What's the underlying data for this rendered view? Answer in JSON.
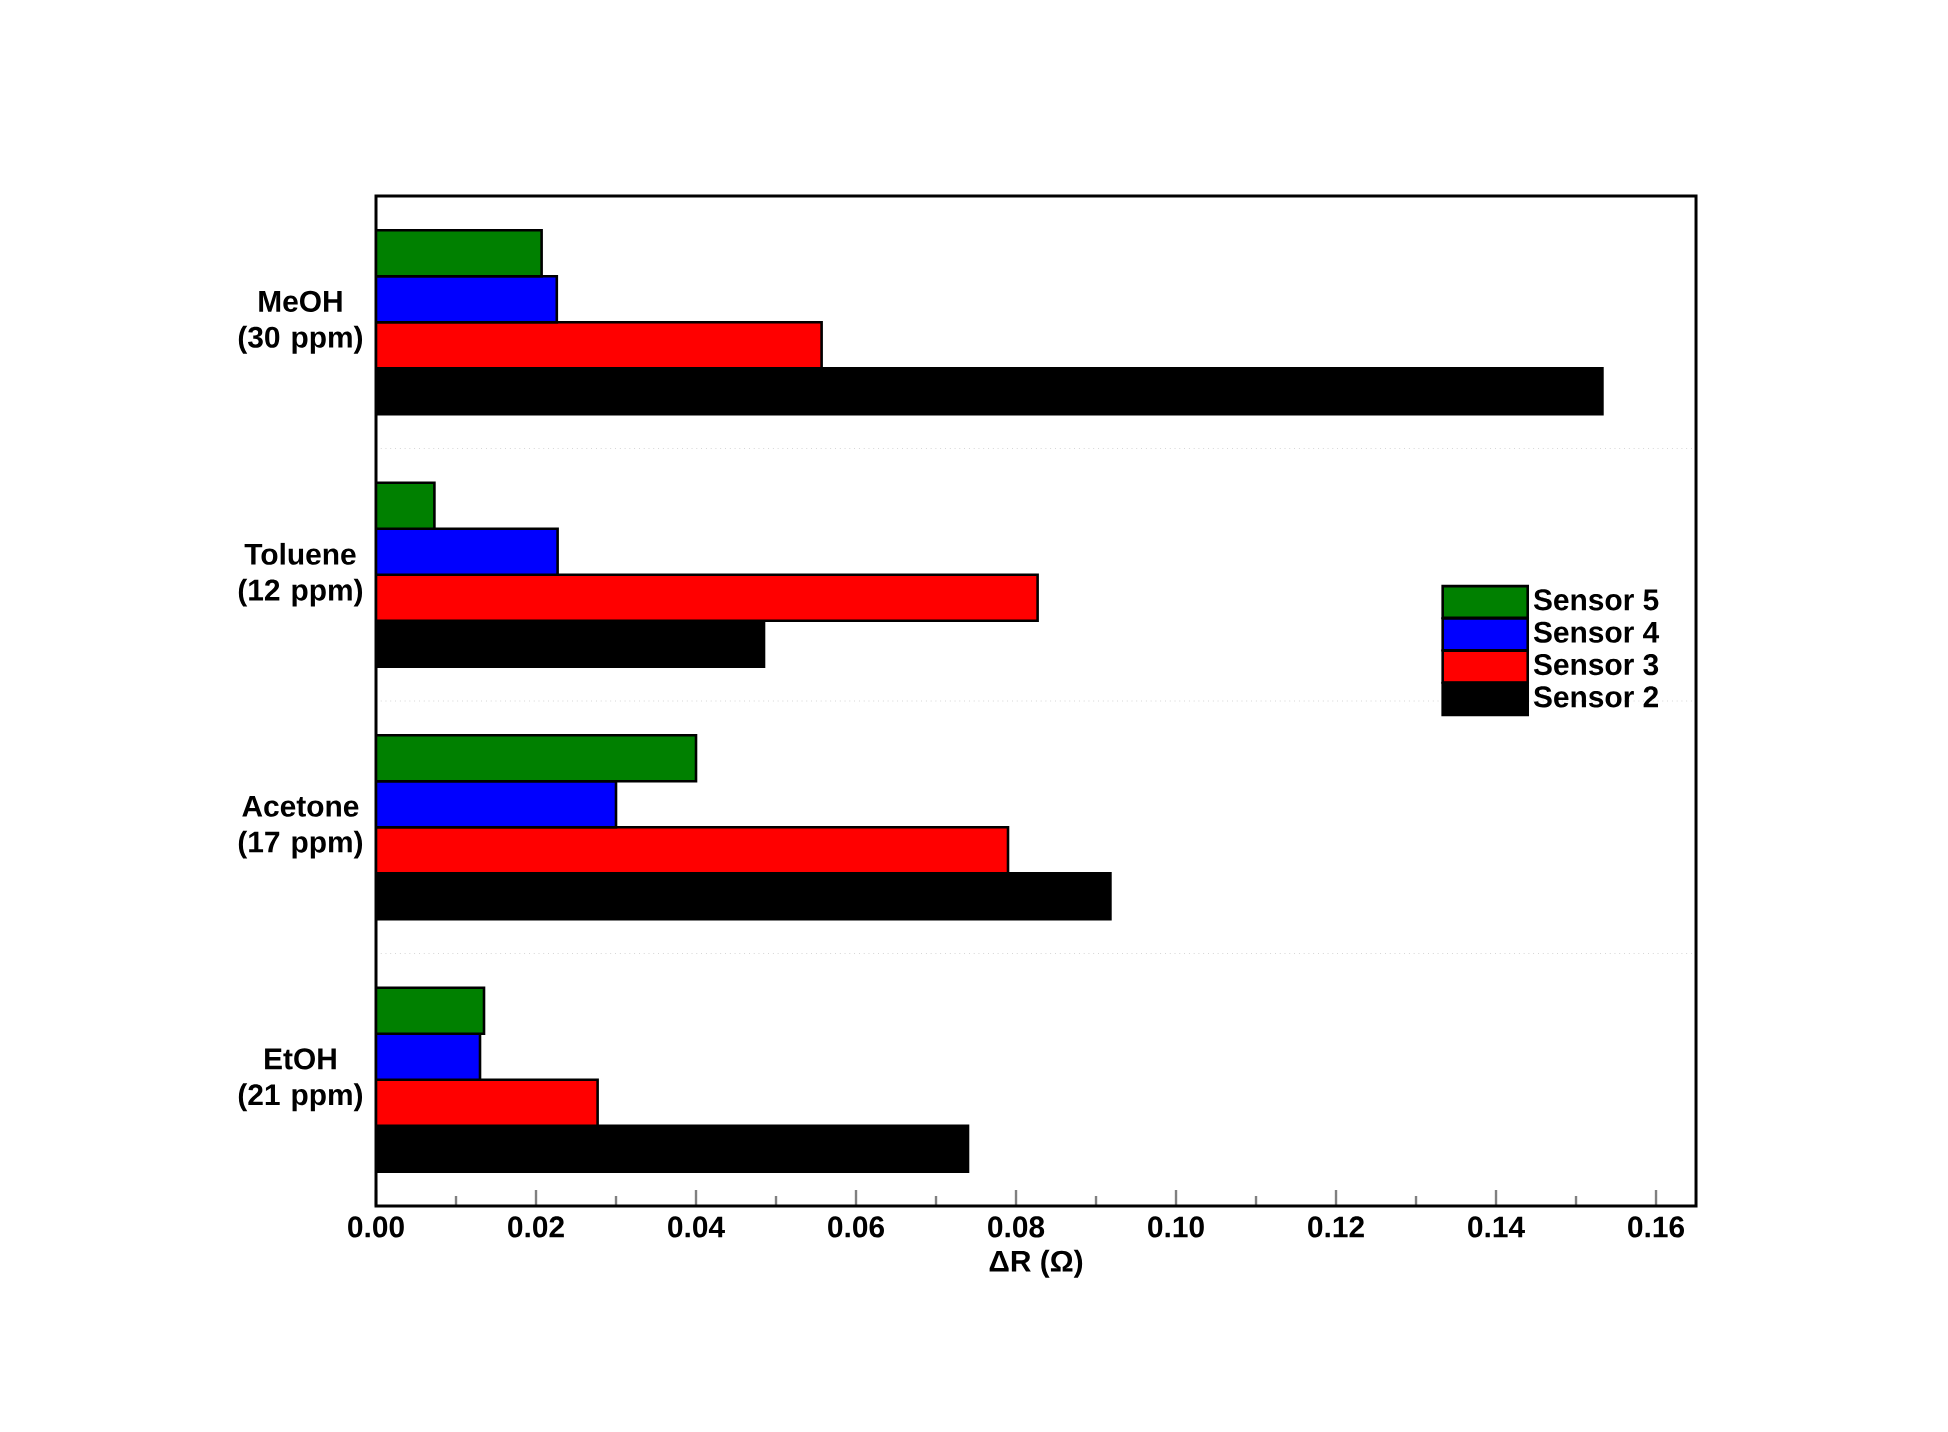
{
  "chart_data": {
    "type": "bar",
    "orientation": "horizontal",
    "xlabel": "ΔR (Ω)",
    "categories": [
      "MeOH (30 ppm)",
      "Toluene (12 ppm)",
      "Acetone (17 ppm)",
      "EtOH (21 ppm)"
    ],
    "series": [
      {
        "name": "Sensor 5",
        "color": "#008000",
        "values": [
          0.0207,
          0.0073,
          0.04,
          0.0135
        ]
      },
      {
        "name": "Sensor 4",
        "color": "#0000ff",
        "values": [
          0.0226,
          0.0227,
          0.03,
          0.013
        ]
      },
      {
        "name": "Sensor 3",
        "color": "#ff0000",
        "values": [
          0.0557,
          0.0827,
          0.079,
          0.0277
        ]
      },
      {
        "name": "Sensor 2",
        "color": "#000000",
        "values": [
          0.1533,
          0.0485,
          0.0918,
          0.074
        ]
      }
    ],
    "xlim": [
      0,
      0.165
    ],
    "xticks": [
      {
        "value": 0,
        "label": "0.00"
      },
      {
        "value": 0.02,
        "label": "0.02"
      },
      {
        "value": 0.04,
        "label": "0.04"
      },
      {
        "value": 0.06,
        "label": "0.06"
      },
      {
        "value": 0.08,
        "label": "0.08"
      },
      {
        "value": 0.1,
        "label": "0.10"
      },
      {
        "value": 0.12,
        "label": "0.12"
      },
      {
        "value": 0.14,
        "label": "0.14"
      },
      {
        "value": 0.16,
        "label": "0.16"
      }
    ],
    "grid": "y",
    "legend": "right"
  }
}
